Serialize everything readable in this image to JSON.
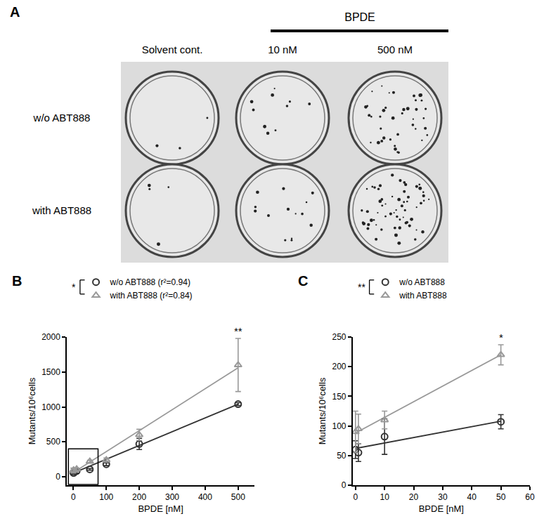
{
  "panel_a": {
    "label": "A",
    "header": "BPDE",
    "columns": [
      "Solvent cont.",
      "10 nM",
      "500 nM"
    ],
    "rows": [
      "w/o ABT888",
      "with ABT888"
    ]
  },
  "chart_data": [
    {
      "label": "B",
      "type": "scatter",
      "xlabel": "BPDE [nM]",
      "ylabel": "Mutants/10⁶cells",
      "xlim": [
        -20,
        550
      ],
      "xticks": [
        0,
        100,
        200,
        300,
        400,
        500
      ],
      "ylim": [
        -120,
        2000
      ],
      "yticks": [
        0,
        500,
        1000,
        1500,
        2000
      ],
      "x": [
        0,
        1,
        10,
        50,
        100,
        200,
        500
      ],
      "series": [
        {
          "name": "w/o ABT888 (r²=0.94)",
          "color": "#333333",
          "marker": "circle-open",
          "values": [
            60,
            55,
            82,
            107,
            180,
            470,
            1040
          ],
          "error": [
            15,
            15,
            30,
            12,
            20,
            80,
            20
          ],
          "fit": {
            "x": [
              0,
              500
            ],
            "values": [
              55,
              1040
            ]
          }
        },
        {
          "name": "with ABT888 (r²=0.84)",
          "color": "#999999",
          "marker": "triangle-up-open",
          "values": [
            90,
            95,
            110,
            220,
            240,
            600,
            1600
          ],
          "error": [
            35,
            25,
            15,
            17,
            30,
            80,
            380
          ],
          "fit": {
            "x": [
              0,
              500
            ],
            "values": [
              60,
              1560
            ]
          }
        }
      ],
      "legend_bracket": "*",
      "significance": [
        {
          "x": 500,
          "text": "**"
        }
      ],
      "zoom_box": {
        "x": [
          -15,
          75
        ],
        "y": [
          -110,
          400
        ]
      }
    },
    {
      "label": "C",
      "type": "scatter",
      "xlabel": "BPDE [nM]",
      "ylabel": "Mutants/10⁶cells",
      "xlim": [
        -1,
        60
      ],
      "xticks": [
        0,
        10,
        20,
        30,
        40,
        50,
        60
      ],
      "ylim": [
        0,
        250
      ],
      "yticks": [
        0,
        50,
        100,
        150,
        200,
        250
      ],
      "x": [
        0,
        1,
        10,
        50
      ],
      "series": [
        {
          "name": "w/o ABT888",
          "color": "#333333",
          "marker": "circle-open",
          "values": [
            60,
            55,
            82,
            107
          ],
          "error": [
            15,
            15,
            30,
            12
          ],
          "fit": {
            "x": [
              0,
              50
            ],
            "values": [
              62,
              108
            ]
          }
        },
        {
          "name": "with ABT888",
          "color": "#999999",
          "marker": "triangle-up-open",
          "values": [
            90,
            95,
            110,
            220
          ],
          "error": [
            35,
            25,
            15,
            17
          ],
          "fit": {
            "x": [
              0,
              50
            ],
            "values": [
              88,
              220
            ]
          }
        }
      ],
      "legend_bracket": "**",
      "significance": [
        {
          "x": 50,
          "text": "*"
        }
      ]
    }
  ]
}
